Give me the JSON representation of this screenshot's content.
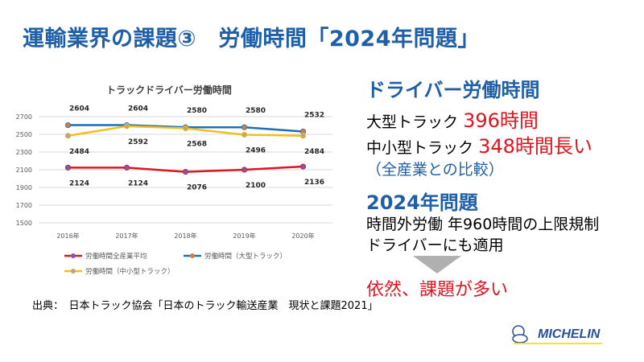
{
  "slide_title": "運輸業界の課題③　労働時間「2024年問題」",
  "right": {
    "heading1": "ドライバー労働時間",
    "large_truck_label": "大型トラック",
    "large_truck_value": "396時間",
    "small_truck_label": "中小型トラック",
    "small_truck_value": "348時間長い",
    "comparison_note": "（全産業との比較）",
    "heading2": "2024年問題",
    "rule_line1": "時間外労働 年960時間の上限規制",
    "rule_line2": "ドライバーにも適用",
    "conclusion": "依然、課題が多い"
  },
  "source": "出典：　日本トラック協会「日本のトラック輸送産業　現状と課題2021」",
  "logo": {
    "text": "MICHELIN",
    "brand_color": "#27509b"
  },
  "colors": {
    "title": "#1f5fa8",
    "accent_red": "#e0141e",
    "arrow": "#b0b0b0"
  },
  "chart_data": {
    "type": "line",
    "title": "トラックドライバー労働時間",
    "categories": [
      "2016年",
      "2017年",
      "2018年",
      "2019年",
      "2020年"
    ],
    "ylim": [
      1500,
      2700
    ],
    "yticks": [
      "2700",
      "2500",
      "2300",
      "2100",
      "1900",
      "1700",
      "1500"
    ],
    "grid": true,
    "legend_placement": "bottom",
    "series": [
      {
        "name": "労働時間全産業平均",
        "values": [
          2124,
          2124,
          2076,
          2100,
          2136
        ],
        "color": "#e0141e",
        "marker": "#7b5aa6"
      },
      {
        "name": "労働時間（大型トラック）",
        "values": [
          2604,
          2604,
          2580,
          2580,
          2532
        ],
        "color": "#1f6fb8",
        "marker": "#c8804a"
      },
      {
        "name": "労働時間（中小型トラック）",
        "values": [
          2484,
          2592,
          2568,
          2496,
          2484
        ],
        "color": "#f0c020",
        "marker": "#b8a878"
      }
    ]
  }
}
